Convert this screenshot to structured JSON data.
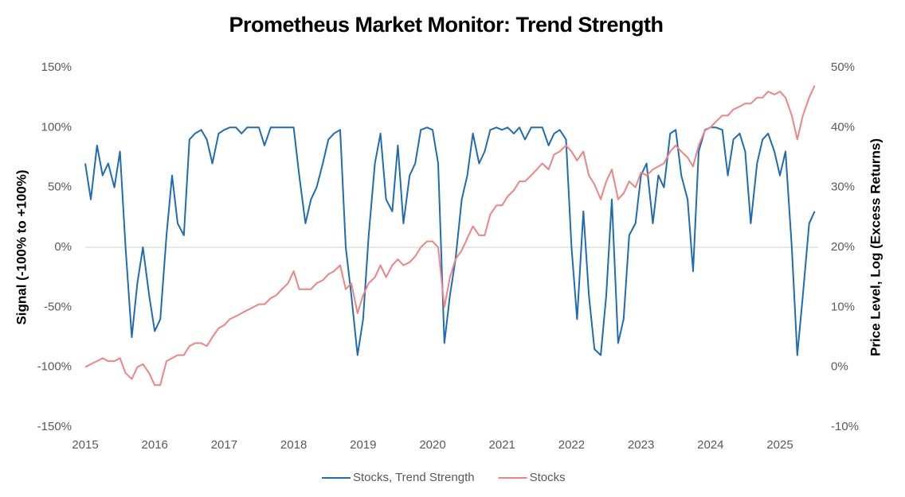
{
  "chart_data": {
    "type": "line",
    "title": "Prometheus Market Monitor: Trend Strength",
    "y_label": "Signal (-100% to +100%)",
    "y2_label": "Price Level, Log (Excess Returns)",
    "xlim": [
      2015,
      2025.55
    ],
    "xticks": [
      2015,
      2016,
      2017,
      2018,
      2019,
      2020,
      2021,
      2022,
      2023,
      2024,
      2025
    ],
    "ylim": [
      -150,
      150
    ],
    "yticks": [
      {
        "value": -150,
        "label": "-150%"
      },
      {
        "value": -100,
        "label": "-100%"
      },
      {
        "value": -50,
        "label": "-50%"
      },
      {
        "value": 0,
        "label": "0%"
      },
      {
        "value": 50,
        "label": "50%"
      },
      {
        "value": 100,
        "label": "100%"
      },
      {
        "value": 150,
        "label": "150%"
      }
    ],
    "y2lim": [
      -10,
      50
    ],
    "y2ticks": [
      {
        "value": -10,
        "label": "-10%"
      },
      {
        "value": 0,
        "label": "0%"
      },
      {
        "value": 10,
        "label": "10%"
      },
      {
        "value": 20,
        "label": "20%"
      },
      {
        "value": 30,
        "label": "30%"
      },
      {
        "value": 40,
        "label": "40%"
      },
      {
        "value": 50,
        "label": "50%"
      }
    ],
    "zero_line": true,
    "legend": "bottom",
    "x": [
      2015,
      2015.08,
      2015.17,
      2015.25,
      2015.33,
      2015.42,
      2015.5,
      2015.58,
      2015.67,
      2015.75,
      2015.83,
      2015.92,
      2016,
      2016.08,
      2016.17,
      2016.25,
      2016.33,
      2016.42,
      2016.5,
      2016.58,
      2016.67,
      2016.75,
      2016.83,
      2016.92,
      2017,
      2017.08,
      2017.17,
      2017.25,
      2017.33,
      2017.42,
      2017.5,
      2017.58,
      2017.67,
      2017.75,
      2017.83,
      2017.92,
      2018,
      2018.08,
      2018.17,
      2018.25,
      2018.33,
      2018.42,
      2018.5,
      2018.58,
      2018.67,
      2018.75,
      2018.83,
      2018.92,
      2019,
      2019.08,
      2019.17,
      2019.25,
      2019.33,
      2019.42,
      2019.5,
      2019.58,
      2019.67,
      2019.75,
      2019.83,
      2019.92,
      2020,
      2020.08,
      2020.17,
      2020.25,
      2020.33,
      2020.42,
      2020.5,
      2020.58,
      2020.67,
      2020.75,
      2020.83,
      2020.92,
      2021,
      2021.08,
      2021.17,
      2021.25,
      2021.33,
      2021.42,
      2021.5,
      2021.58,
      2021.67,
      2021.75,
      2021.83,
      2021.92,
      2022,
      2022.08,
      2022.17,
      2022.25,
      2022.33,
      2022.42,
      2022.5,
      2022.58,
      2022.67,
      2022.75,
      2022.83,
      2022.92,
      2023,
      2023.08,
      2023.17,
      2023.25,
      2023.33,
      2023.42,
      2023.5,
      2023.58,
      2023.67,
      2023.75,
      2023.83,
      2023.92,
      2024,
      2024.08,
      2024.17,
      2024.25,
      2024.33,
      2024.42,
      2024.5,
      2024.58,
      2024.67,
      2024.75,
      2024.83,
      2024.92,
      2025,
      2025.08,
      2025.17,
      2025.25,
      2025.33,
      2025.42,
      2025.5
    ],
    "series": [
      {
        "name": "Stocks, Trend Strength",
        "color": "#1f6cb4",
        "axis": "y",
        "values": [
          70,
          40,
          85,
          60,
          70,
          50,
          80,
          0,
          -75,
          -30,
          0,
          -40,
          -70,
          -60,
          10,
          60,
          20,
          10,
          90,
          95,
          98,
          90,
          70,
          95,
          98,
          100,
          100,
          95,
          100,
          100,
          100,
          85,
          100,
          100,
          100,
          100,
          100,
          60,
          20,
          40,
          50,
          70,
          90,
          95,
          98,
          0,
          -40,
          -90,
          -60,
          10,
          70,
          95,
          40,
          30,
          85,
          20,
          60,
          70,
          98,
          100,
          98,
          70,
          -80,
          -40,
          -10,
          40,
          60,
          95,
          70,
          80,
          98,
          100,
          98,
          100,
          95,
          100,
          90,
          100,
          100,
          100,
          85,
          95,
          98,
          90,
          0,
          -60,
          30,
          -40,
          -85,
          -90,
          -40,
          40,
          -80,
          -60,
          10,
          20,
          60,
          70,
          20,
          60,
          50,
          95,
          98,
          60,
          40,
          -20,
          80,
          98,
          100,
          100,
          98,
          60,
          90,
          95,
          80,
          20,
          70,
          90,
          95,
          80,
          60,
          80,
          0,
          -90,
          -40,
          20,
          30
        ]
      },
      {
        "name": "Stocks",
        "color": "#f08383",
        "axis": "y2",
        "values": [
          0,
          0.5,
          1,
          1.5,
          1,
          1,
          1.5,
          -1,
          -2,
          0,
          0.5,
          -1,
          -3,
          -3,
          1,
          1.5,
          2,
          2,
          3.5,
          4,
          4,
          3.5,
          5,
          6.5,
          7,
          8,
          8.5,
          9,
          9.5,
          10,
          10.5,
          10.5,
          11.5,
          12,
          13,
          14,
          16,
          13,
          13,
          13,
          14,
          14.5,
          15.5,
          16,
          17,
          13,
          14,
          9,
          12,
          14,
          15,
          17,
          15,
          17,
          18,
          17,
          17.5,
          18.5,
          20,
          21,
          21,
          20,
          10,
          15,
          18,
          19.5,
          21.5,
          23.5,
          22,
          22,
          25.5,
          27,
          27,
          28.5,
          29.5,
          31,
          31,
          32,
          33,
          34,
          33,
          35.5,
          36,
          37,
          36,
          34.5,
          36,
          32,
          30.5,
          28,
          31,
          33,
          28,
          29,
          31,
          30,
          32.5,
          32,
          33,
          33.5,
          34,
          36,
          37,
          36,
          35,
          33.5,
          37,
          39.5,
          40,
          41,
          42,
          42,
          43,
          43.5,
          44,
          44,
          45,
          45,
          46,
          45.5,
          46,
          45,
          42,
          38,
          42,
          45,
          47
        ]
      }
    ]
  }
}
